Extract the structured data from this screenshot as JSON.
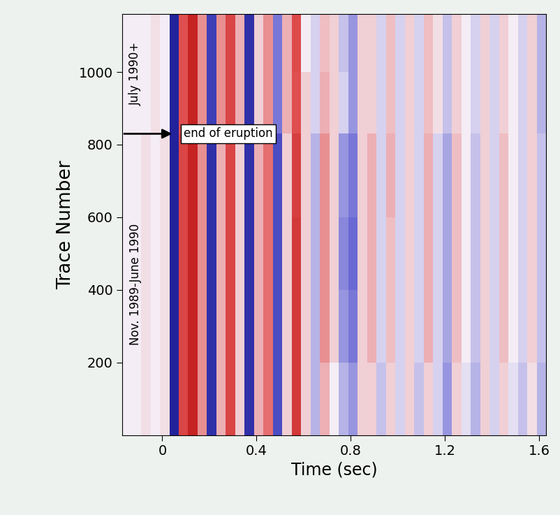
{
  "chart_data": {
    "type": "heatmap",
    "x_label": "Time (sec)",
    "y_label": "Trace Number",
    "xlim": [
      -0.17,
      1.63
    ],
    "xticks": [
      0,
      0.4,
      0.8,
      1.2,
      1.6
    ],
    "ylim": [
      0,
      1160
    ],
    "yticks": [
      200,
      400,
      600,
      800,
      1000
    ],
    "time_edges": [
      -0.17,
      -0.13,
      -0.09,
      -0.05,
      -0.01,
      0.03,
      0.07,
      0.11,
      0.15,
      0.19,
      0.23,
      0.27,
      0.31,
      0.35,
      0.39,
      0.43,
      0.47,
      0.51,
      0.55,
      0.59,
      0.63,
      0.67,
      0.71,
      0.75,
      0.79,
      0.83,
      0.87,
      0.91,
      0.95,
      0.99,
      1.03,
      1.07,
      1.11,
      1.15,
      1.19,
      1.23,
      1.27,
      1.31,
      1.35,
      1.39,
      1.43,
      1.47,
      1.51,
      1.55,
      1.59,
      1.63
    ],
    "trace_edges": [
      0,
      200,
      400,
      600,
      830,
      1000,
      1160
    ],
    "color_range": [
      -1,
      1
    ],
    "cells": [
      [
        0,
        0,
        0.05,
        0,
        0.05,
        -0.9,
        0.6,
        0.9,
        0.3,
        -0.8,
        0.2,
        0.6,
        0.1,
        -0.8,
        0.2,
        0.4,
        -0.6,
        0.1,
        0.7,
        0.1,
        -0.2,
        0.2,
        0,
        -0.2,
        -0.3,
        0.1,
        0.1,
        -0.15,
        0.1,
        -0.1,
        0.1,
        -0.15,
        0.1,
        -0.1,
        -0.3,
        0.1,
        -0.05,
        -0.2,
        0.1,
        -0.1,
        0.1,
        -0.05,
        -0.15,
        0.05,
        -0.2
      ],
      [
        0,
        0,
        0.05,
        0,
        0.05,
        -0.9,
        0.6,
        0.9,
        0.3,
        -0.8,
        0.2,
        0.6,
        0.1,
        -0.8,
        0.2,
        0.4,
        -0.6,
        0.1,
        0.7,
        0.1,
        -0.2,
        0.3,
        0.1,
        -0.3,
        -0.4,
        0.1,
        0.2,
        -0.1,
        0.15,
        -0.1,
        0.1,
        -0.1,
        0.2,
        -0.1,
        -0.25,
        0.15,
        0,
        -0.15,
        0.1,
        -0.1,
        0.15,
        0,
        -0.1,
        0.1,
        -0.15
      ],
      [
        0,
        0,
        0.05,
        0,
        0.05,
        -0.9,
        0.6,
        0.9,
        0.3,
        -0.8,
        0.2,
        0.6,
        0.1,
        -0.8,
        0.2,
        0.4,
        -0.6,
        0.1,
        0.7,
        0.1,
        -0.2,
        0.3,
        0.1,
        -0.35,
        -0.45,
        0.1,
        0.2,
        -0.1,
        0.15,
        -0.1,
        0.1,
        -0.1,
        0.2,
        -0.1,
        -0.25,
        0.15,
        0,
        -0.15,
        0.1,
        -0.1,
        0.15,
        0,
        -0.1,
        0.1,
        -0.15
      ],
      [
        0,
        0,
        0.05,
        0,
        0.05,
        -0.9,
        0.6,
        0.9,
        0.3,
        -0.8,
        0.2,
        0.6,
        0.1,
        -0.8,
        0.2,
        0.4,
        -0.6,
        0.1,
        0.65,
        0.1,
        -0.2,
        0.3,
        0.1,
        -0.3,
        -0.4,
        0.1,
        0.2,
        -0.1,
        0.2,
        -0.1,
        0.1,
        -0.1,
        0.2,
        -0.1,
        -0.25,
        0.15,
        0,
        -0.15,
        0.1,
        -0.1,
        0.15,
        0,
        -0.1,
        0.1,
        -0.15
      ],
      [
        0,
        0,
        0,
        0.05,
        0,
        -0.9,
        0.5,
        0.9,
        0.3,
        -0.7,
        0.3,
        0.6,
        0.2,
        -0.8,
        0.1,
        0.3,
        -0.4,
        0.2,
        0.5,
        0.1,
        -0.1,
        0.2,
        0.1,
        -0.1,
        -0.3,
        0.1,
        0.1,
        -0.1,
        0.15,
        -0.1,
        0.1,
        -0.1,
        0.15,
        0.05,
        -0.15,
        0.1,
        0,
        -0.1,
        0.1,
        -0.1,
        0.1,
        0,
        -0.1,
        0.1,
        -0.2
      ],
      [
        0,
        0,
        0,
        0.05,
        0,
        -0.9,
        0.5,
        0.9,
        0.3,
        -0.7,
        0.3,
        0.6,
        0.2,
        -0.8,
        0.1,
        0.3,
        -0.4,
        0.2,
        0.55,
        0,
        -0.1,
        0.15,
        0.1,
        -0.15,
        -0.3,
        0.1,
        0.1,
        -0.1,
        0.15,
        -0.1,
        0.1,
        -0.1,
        0.15,
        0.05,
        -0.15,
        0.1,
        0,
        -0.1,
        0.1,
        -0.1,
        0.1,
        0,
        -0.1,
        0.1,
        -0.2
      ]
    ],
    "periods": [
      {
        "label": "Nov. 1989-June 1990",
        "traces": [
          0,
          830
        ]
      },
      {
        "label": "July 1990+",
        "traces": [
          830,
          1160
        ]
      }
    ],
    "annotation": {
      "text": "end of eruption",
      "trace": 830,
      "time": 0.05
    }
  }
}
